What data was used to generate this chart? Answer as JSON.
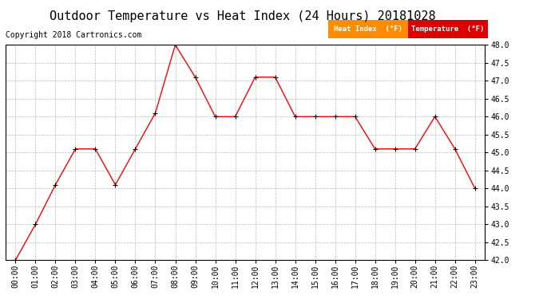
{
  "title": "Outdoor Temperature vs Heat Index (24 Hours) 20181028",
  "copyright": "Copyright 2018 Cartronics.com",
  "hours": [
    "00:00",
    "01:00",
    "02:00",
    "03:00",
    "04:00",
    "05:00",
    "06:00",
    "07:00",
    "08:00",
    "09:00",
    "10:00",
    "11:00",
    "12:00",
    "13:00",
    "14:00",
    "15:00",
    "16:00",
    "17:00",
    "18:00",
    "19:00",
    "20:00",
    "21:00",
    "22:00",
    "23:00"
  ],
  "temperature": [
    42.0,
    43.0,
    44.1,
    45.1,
    45.1,
    44.1,
    45.1,
    46.1,
    48.0,
    47.1,
    46.0,
    46.0,
    47.1,
    47.1,
    46.0,
    46.0,
    46.0,
    46.0,
    45.1,
    45.1,
    45.1,
    46.0,
    45.1,
    44.0
  ],
  "heat_index": [
    42.0,
    43.0,
    44.1,
    45.1,
    45.1,
    44.1,
    45.1,
    46.1,
    48.0,
    47.1,
    46.0,
    46.0,
    47.1,
    47.1,
    46.0,
    46.0,
    46.0,
    46.0,
    45.1,
    45.1,
    45.1,
    46.0,
    45.1,
    44.0
  ],
  "ylim": [
    42.0,
    48.0
  ],
  "yticks": [
    42.0,
    42.5,
    43.0,
    43.5,
    44.0,
    44.5,
    45.0,
    45.5,
    46.0,
    46.5,
    47.0,
    47.5,
    48.0
  ],
  "line_color": "#ff0000",
  "marker_color": "#000000",
  "heat_index_legend_bg": "#ff8c00",
  "temp_legend_bg": "#dd0000",
  "legend_text_color": "#ffffff",
  "grid_color": "#bbbbbb",
  "background_color": "#ffffff",
  "title_fontsize": 11,
  "copyright_fontsize": 7,
  "tick_fontsize": 7
}
